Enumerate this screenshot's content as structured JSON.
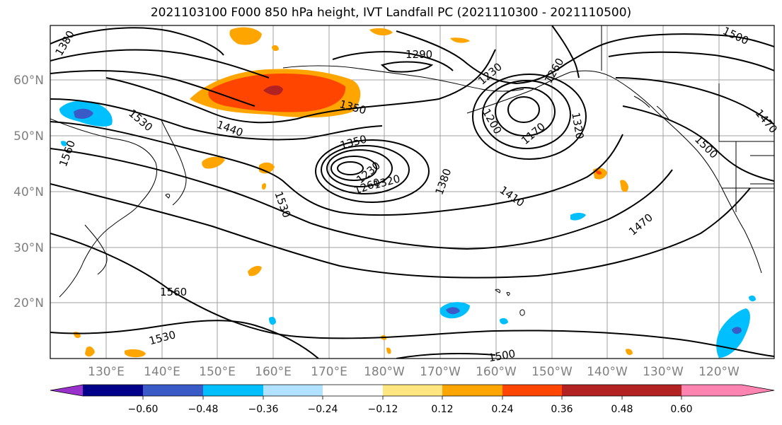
{
  "title": "2021103100 F000 850 hPa height, IVT Landfall PC (2021110300 - 2021110500)",
  "lat_labels": [
    "60°N",
    "50°N",
    "40°N",
    "30°N",
    "20°N"
  ],
  "lon_labels": [
    "130°E",
    "140°E",
    "150°E",
    "160°E",
    "170°E",
    "180°W",
    "170°W",
    "160°W",
    "150°W",
    "140°W",
    "130°W",
    "120°W"
  ],
  "contour_labels": [
    "1380",
    "1290",
    "1230",
    "1260",
    "1500",
    "1350",
    "1440",
    "1350",
    "1200",
    "1170",
    "1320",
    "1530",
    "1560",
    "1230",
    "1260",
    "1320",
    "1380",
    "1410",
    "1470",
    "1500",
    "1530",
    "1560",
    "1530",
    "1500",
    "1470"
  ],
  "colorbar": {
    "ticks": [
      "−0.60",
      "−0.48",
      "−0.36",
      "−0.24",
      "−0.12",
      "0.12",
      "0.24",
      "0.36",
      "0.48",
      "0.60"
    ],
    "colors": [
      "#9932CC",
      "#00008B",
      "#3A5BC7",
      "#00BFFF",
      "#B0E2FF",
      "#FFFFFF",
      "#FFE680",
      "#FFA500",
      "#FF4500",
      "#B22222",
      "#FF85B0"
    ]
  }
}
